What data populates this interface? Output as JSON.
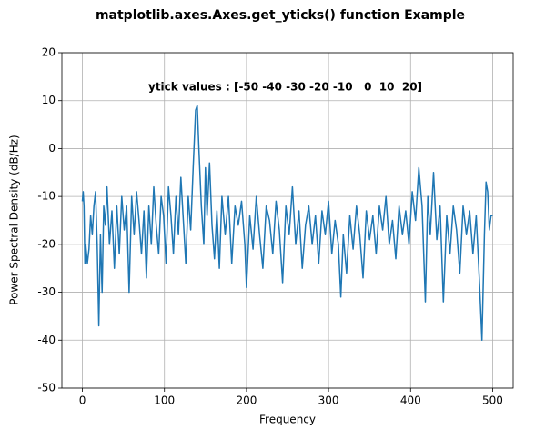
{
  "chart_data": {
    "type": "line",
    "title": "matplotlib.axes.Axes.get_yticks() function Example",
    "xlabel": "Frequency",
    "ylabel": "Power Spectral Density (dB/Hz)",
    "annotation": "ytick values : [-50 -40 -30 -20 -10   0  10  20]",
    "xlim": [
      -25,
      525
    ],
    "ylim": [
      -50,
      20
    ],
    "xticks": [
      0,
      100,
      200,
      300,
      400,
      500
    ],
    "yticks": [
      -50,
      -40,
      -30,
      -20,
      -10,
      0,
      10,
      20
    ],
    "grid": true,
    "series": [
      {
        "name": "PSD",
        "color": "#1f77b4",
        "x": [
          0,
          1,
          2,
          3,
          4,
          6,
          8,
          10,
          12,
          14,
          16,
          18,
          20,
          22,
          24,
          26,
          28,
          30,
          33,
          36,
          39,
          42,
          45,
          48,
          51,
          54,
          57,
          60,
          63,
          66,
          69,
          72,
          75,
          78,
          81,
          84,
          87,
          90,
          93,
          96,
          99,
          102,
          105,
          108,
          111,
          114,
          117,
          120,
          123,
          126,
          129,
          132,
          135,
          138,
          140,
          142,
          145,
          148,
          150,
          152,
          155,
          158,
          161,
          164,
          167,
          170,
          174,
          178,
          182,
          186,
          190,
          194,
          198,
          200,
          204,
          208,
          212,
          216,
          220,
          224,
          228,
          232,
          236,
          240,
          244,
          248,
          252,
          256,
          260,
          264,
          268,
          272,
          276,
          280,
          284,
          288,
          292,
          296,
          300,
          304,
          308,
          312,
          315,
          318,
          322,
          326,
          330,
          334,
          338,
          342,
          346,
          350,
          354,
          358,
          362,
          366,
          370,
          374,
          378,
          382,
          386,
          390,
          394,
          398,
          402,
          406,
          410,
          414,
          418,
          421,
          424,
          428,
          432,
          436,
          440,
          444,
          448,
          452,
          456,
          460,
          464,
          468,
          472,
          476,
          480,
          484,
          487,
          490,
          492,
          494,
          496,
          498,
          500
        ],
        "values": [
          -11,
          -9,
          -12,
          -24,
          -20,
          -24,
          -21,
          -14,
          -18,
          -12,
          -9,
          -20,
          -37,
          -18,
          -30,
          -12,
          -16,
          -8,
          -20,
          -13,
          -25,
          -12,
          -22,
          -10,
          -17,
          -12,
          -30,
          -10,
          -18,
          -9,
          -15,
          -22,
          -13,
          -27,
          -12,
          -20,
          -8,
          -16,
          -22,
          -10,
          -14,
          -24,
          -8,
          -14,
          -22,
          -10,
          -18,
          -6,
          -15,
          -24,
          -10,
          -17,
          -4,
          8,
          9,
          0,
          -12,
          -20,
          -4,
          -14,
          -3,
          -16,
          -23,
          -13,
          -25,
          -10,
          -18,
          -10,
          -24,
          -12,
          -16,
          -11,
          -20,
          -29,
          -14,
          -21,
          -10,
          -18,
          -25,
          -12,
          -15,
          -22,
          -11,
          -17,
          -28,
          -12,
          -18,
          -8,
          -20,
          -13,
          -25,
          -16,
          -12,
          -20,
          -14,
          -24,
          -13,
          -18,
          -11,
          -22,
          -15,
          -20,
          -31,
          -18,
          -26,
          -14,
          -21,
          -12,
          -18,
          -27,
          -13,
          -19,
          -14,
          -22,
          -12,
          -17,
          -10,
          -20,
          -15,
          -23,
          -12,
          -18,
          -13,
          -20,
          -9,
          -15,
          -4,
          -12,
          -32,
          -10,
          -18,
          -5,
          -19,
          -12,
          -32,
          -14,
          -22,
          -12,
          -17,
          -26,
          -12,
          -18,
          -13,
          -22,
          -14,
          -28,
          -40,
          -18,
          -7,
          -9,
          -17,
          -14,
          -14
        ]
      }
    ]
  }
}
